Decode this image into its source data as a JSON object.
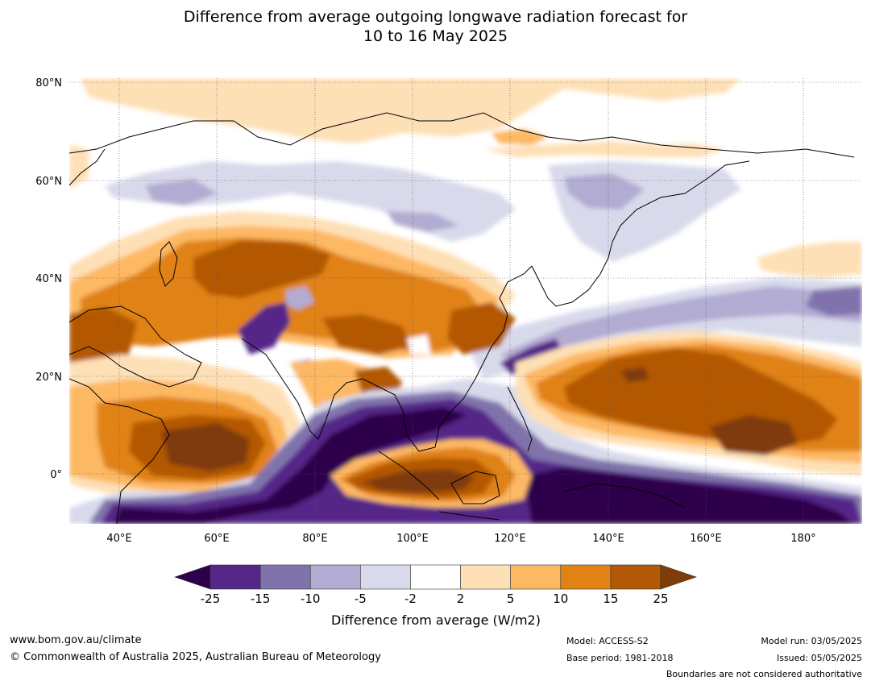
{
  "header": {
    "title_line1": "Difference from average outgoing longwave radiation forecast for",
    "title_line2": "10 to 16 May 2025"
  },
  "map": {
    "lat_labels": [
      "80°N",
      "60°N",
      "40°N",
      "20°N",
      "0°"
    ],
    "lon_labels": [
      "40°E",
      "60°E",
      "80°E",
      "100°E",
      "120°E",
      "140°E",
      "160°E",
      "180°"
    ]
  },
  "colorbar": {
    "title": "Difference from average (W/m2)",
    "ticks": [
      "-25",
      "-15",
      "-10",
      "-5",
      "-2",
      "2",
      "5",
      "10",
      "15",
      "25"
    ],
    "colors": {
      "below_min": "#2d004b",
      "bins": [
        "#542788",
        "#8073ac",
        "#b2abd2",
        "#d8daeb",
        "#ffffff",
        "#fee0b6",
        "#fdb863",
        "#e08214",
        "#b35806"
      ],
      "above_max": "#7f3b08"
    }
  },
  "footer": {
    "website": "www.bom.gov.au/climate",
    "copyright": "© Commonwealth of Australia 2025, Australian Bureau of Meteorology",
    "model": "Model: ACCESS-S2",
    "base_period": "Base period: 1981-2018",
    "model_run": "Model run: 03/05/2025",
    "issued": "Issued: 05/05/2025",
    "disclaimer": "Boundaries are not considered authoritative"
  }
}
